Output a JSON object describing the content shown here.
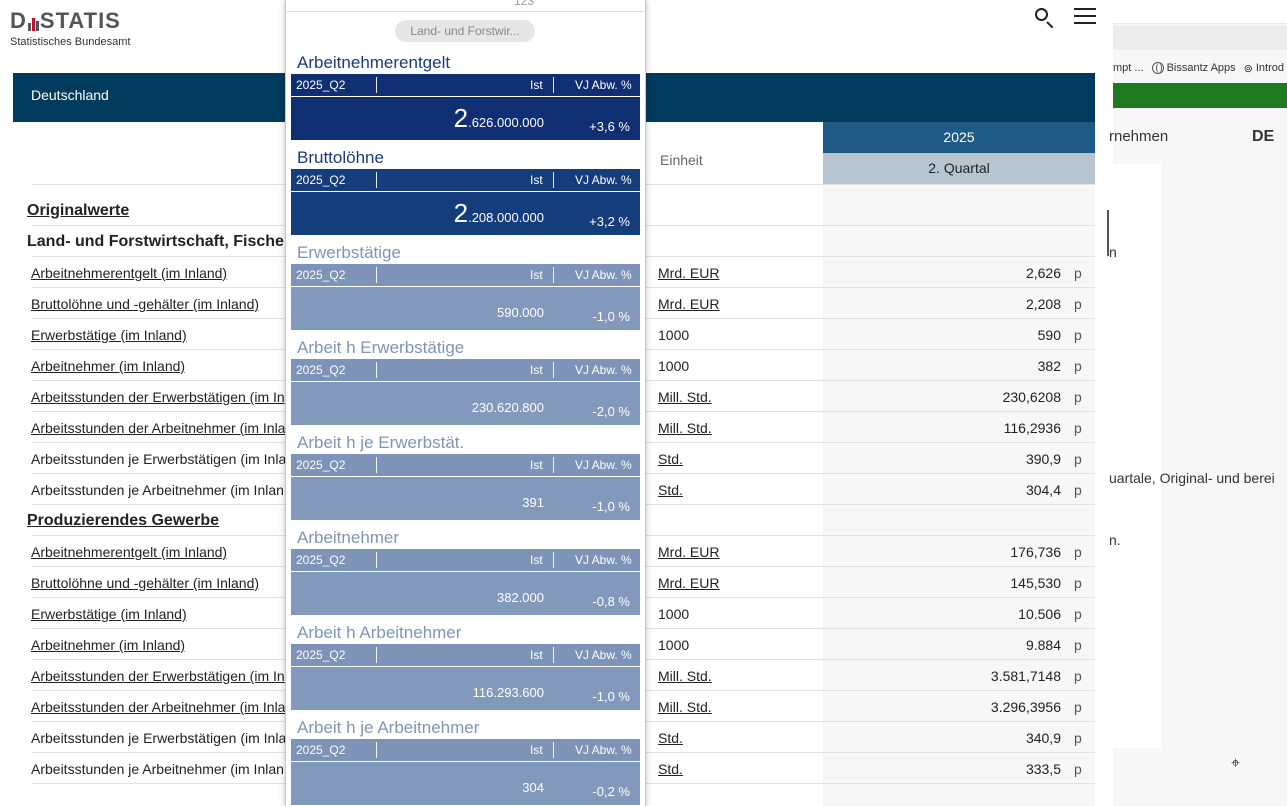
{
  "header": {
    "logo_text_left": "D",
    "logo_text_right": "STATIS",
    "logo_subtitle": "Statistisches Bundesamt"
  },
  "region": "Deutschland",
  "columns": {
    "unit_header": "Einheit",
    "year": "2025",
    "quarter": "2. Quartal"
  },
  "sections": [
    {
      "title": "Originalwerte",
      "underlined": true,
      "rows": []
    },
    {
      "title": "Land- und Forstwirtschaft, Fische",
      "underlined": false,
      "rows": [
        {
          "label": "Arbeitnehmerentgelt (im Inland)",
          "link": true,
          "unit": "Mrd. EUR",
          "unit_link": true,
          "value": "2,626",
          "flag": "p"
        },
        {
          "label": "Bruttolöhne und -gehälter (im Inland)",
          "link": true,
          "unit": "Mrd. EUR",
          "unit_link": true,
          "value": "2,208",
          "flag": "p"
        },
        {
          "label": "Erwerbstätige (im Inland)",
          "link": true,
          "unit": "1000",
          "unit_link": false,
          "value": "590",
          "flag": "p"
        },
        {
          "label": "Arbeitnehmer (im Inland)",
          "link": true,
          "unit": "1000",
          "unit_link": false,
          "value": "382",
          "flag": "p"
        },
        {
          "label": "Arbeitsstunden der Erwerbstätigen (im In",
          "link": true,
          "unit": "Mill. Std.",
          "unit_link": true,
          "value": "230,6208",
          "flag": "p"
        },
        {
          "label": "Arbeitsstunden der Arbeitnehmer (im Inla",
          "link": true,
          "unit": "Mill. Std.",
          "unit_link": true,
          "value": "116,2936",
          "flag": "p"
        },
        {
          "label": "Arbeitsstunden je Erwerbstätigen (im Inla",
          "link": false,
          "unit": "Std.",
          "unit_link": true,
          "value": "390,9",
          "flag": "p"
        },
        {
          "label": "Arbeitsstunden je Arbeitnehmer (im Inlan",
          "link": false,
          "unit": "Std.",
          "unit_link": true,
          "value": "304,4",
          "flag": "p"
        }
      ]
    },
    {
      "title": "Produzierendes Gewerbe",
      "underlined": true,
      "rows": [
        {
          "label": "Arbeitnehmerentgelt (im Inland)",
          "link": true,
          "unit": "Mrd. EUR",
          "unit_link": true,
          "value": "176,736",
          "flag": "p"
        },
        {
          "label": "Bruttolöhne und -gehälter (im Inland)",
          "link": true,
          "unit": "Mrd. EUR",
          "unit_link": true,
          "value": "145,530",
          "flag": "p"
        },
        {
          "label": "Erwerbstätige (im Inland)",
          "link": true,
          "unit": "1000",
          "unit_link": false,
          "value": "10.506",
          "flag": "p"
        },
        {
          "label": "Arbeitnehmer (im Inland)",
          "link": true,
          "unit": "1000",
          "unit_link": false,
          "value": "9.884",
          "flag": "p"
        },
        {
          "label": "Arbeitsstunden der Erwerbstätigen (im In",
          "link": true,
          "unit": "Mill. Std.",
          "unit_link": true,
          "value": "3.581,7148",
          "flag": "p"
        },
        {
          "label": "Arbeitsstunden der Arbeitnehmer (im Inla",
          "link": true,
          "unit": "Mill. Std.",
          "unit_link": true,
          "value": "3.296,3956",
          "flag": "p"
        },
        {
          "label": "Arbeitsstunden je Erwerbstätigen (im Inla",
          "link": false,
          "unit": "Std.",
          "unit_link": true,
          "value": "340,9",
          "flag": "p"
        },
        {
          "label": "Arbeitsstunden je Arbeitnehmer (im Inlan",
          "link": false,
          "unit": "Std.",
          "unit_link": true,
          "value": "333,5",
          "flag": "p"
        }
      ]
    }
  ],
  "overlay": {
    "top_numbers": [
      "123"
    ],
    "filter_pill": "Land- und Forstwir...",
    "cards": [
      {
        "title": "Arbeitnehmerentgelt",
        "period": "2025_Q2",
        "ist_label": "Ist",
        "vj_label": "VJ Abw. %",
        "ist_big": "2",
        "ist_rest": ".626.000.000",
        "change": "+3,6 %",
        "style": "dark-first"
      },
      {
        "title": "Bruttolöhne",
        "period": "2025_Q2",
        "ist_label": "Ist",
        "vj_label": "VJ Abw. %",
        "ist_big": "2",
        "ist_rest": ".208.000.000",
        "change": "+3,2 %",
        "style": "dark"
      },
      {
        "title": "Erwerbstätige",
        "period": "2025_Q2",
        "ist_label": "Ist",
        "vj_label": "VJ Abw. %",
        "ist_big": "",
        "ist_rest": "590.000",
        "change": "-1,0 %",
        "style": "light"
      },
      {
        "title": "Arbeit h Erwerbstätige",
        "period": "2025_Q2",
        "ist_label": "Ist",
        "vj_label": "VJ Abw. %",
        "ist_big": "",
        "ist_rest": "230.620.800",
        "change": "-2,0 %",
        "style": "light"
      },
      {
        "title": "Arbeit h je Erwerbstät.",
        "period": "2025_Q2",
        "ist_label": "Ist",
        "vj_label": "VJ Abw. %",
        "ist_big": "",
        "ist_rest": "391",
        "change": "-1,0 %",
        "style": "light"
      },
      {
        "title": "Arbeitnehmer",
        "period": "2025_Q2",
        "ist_label": "Ist",
        "vj_label": "VJ Abw. %",
        "ist_big": "",
        "ist_rest": "382.000",
        "change": "-0,8 %",
        "style": "light"
      },
      {
        "title": "Arbeit h Arbeitnehmer",
        "period": "2025_Q2",
        "ist_label": "Ist",
        "vj_label": "VJ Abw. %",
        "ist_big": "",
        "ist_rest": "116.293.600",
        "change": "-1,0 %",
        "style": "light"
      },
      {
        "title": "Arbeit h je Arbeitnehmer",
        "period": "2025_Q2",
        "ist_label": "Ist",
        "vj_label": "VJ Abw. %",
        "ist_big": "",
        "ist_rest": "304",
        "change": "-0,2 %",
        "style": "light"
      }
    ]
  },
  "background_window": {
    "bookmarks": [
      "mpt ...",
      "Bissantz Apps",
      "Introd"
    ],
    "nav_partial": "rnehmen",
    "nav_lang": "DE",
    "text_fragments": [
      "n",
      "uartale, Original- und berei",
      "n."
    ]
  },
  "colors": {
    "region_bar": "#003a5d",
    "year_header": "#1f5a86",
    "quarter_header": "#b6c5d0",
    "card_dark": "#153d7c",
    "card_light": "#8399bc"
  }
}
